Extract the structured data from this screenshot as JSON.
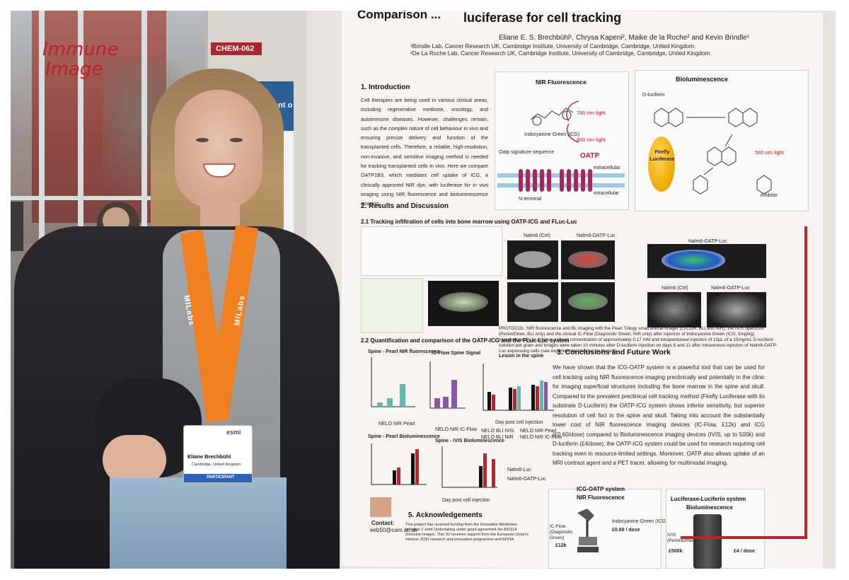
{
  "brand": {
    "logo_line1": "Immune",
    "logo_line2": "Image",
    "accent_color": "#c0212b"
  },
  "signs": {
    "board_number": "CHEM-062",
    "neighbour_fragment": "ssment o"
  },
  "badge": {
    "name": "Eliane Brechbühl",
    "affiliation": "Cambridge, United Kingdom",
    "role": "PARTICIPANT",
    "org": "esmi"
  },
  "lanyard": {
    "text": "MILabs"
  },
  "poster": {
    "title_line1": "Comparison ...",
    "title_line2": "luciferase for cell tracking",
    "authors": "Eliane E. S. Brechbühl¹, Chrysa Kapeni², Maike de la Roche² and Kevin Brindle¹",
    "affiliation1": "¹Brindle Lab, Cancer Research UK, Cambridge Institute, University of Cambridge, Cambridge, United Kingdom.",
    "affiliation2": "²De La Roche Lab, Cancer Research UK, Cambridge Institute, University of Cambridge, Cambridge, United Kingdom.",
    "intro_heading": "1. Introduction",
    "intro_text": "Cell therapies are being used in various clinical areas, including regenerative medicine, oncology, and autoimmune diseases. However, challenges remain, such as the complex nature of cell behaviour in vivo and ensuring precise delivery and function of the transplanted cells. Therefore, a reliable, high-resolution, non-invasive, and sensitive imaging method is needed for tracking transplanted cells in vivo. Here we compare OATP1B3, which mediates cell uptake of ICG, a clinically approved NIR dye, with luciferase for in vivo imaging using NIR fluorescence and bioluminescence imaging.",
    "nir_heading": "NIR Fluorescence",
    "bio_heading": "Bioluminescence",
    "nir_780": "780 nm light",
    "nir_800": "800 nm light",
    "icg_label": "Indocyanine Green (ICG)",
    "oatp_label": "OATP",
    "signature_label": "Oatp signature sequence",
    "extracellular": "extracellular",
    "intracellular": "intracellular",
    "n_terminal": "N-terminal",
    "d_luciferin": "D-luciferin",
    "firefly": "Firefly Luciferase",
    "light_560": "560 nm light",
    "inhibitor": "inhibitor",
    "results_heading": "2. Results and Discussion",
    "results_sub1": "2.1 Tracking infiltration of cells into bone marrow using OATP-ICG and FLuc-Luc",
    "results_sub2": "2.2 Quantification and comparison of the OATP-ICG and the FLuc-Luc system",
    "nalm6_ctrl": "Nalm6 (Ctrl)",
    "nalm6_oatp": "Nalm6-OATP-Luc",
    "protocol": "PROTOCOL: NIR fluorescence and BL imaging with the Pearl Trilogy small animal imager (Li-COR, BLI and NIR), the IVIS Spectrum (PerkinElmer, BLI only) and the clinical IC-Flow (Diagnostic Green, NIR only) after injection of Indocyanine Green (ICG, 5mg/kg) intraperitoneally to achieve a blood concentration of approximately 0.17 mM and intraperitoneal injection of 10µL of a 15mg/mL D-luciferin solution per gram and images were taken 10 minutes after D-luciferin injection on days 8 and 11 after intravenous injection of Nalm6-OATP-Luc expressing cells (see experimental timeline on the left).",
    "chart1_title": "Spine - Pearl NIR fluorescence",
    "chart2_title": "IC-Flow Spine Signal",
    "chart3_title": "Lesion in the spine",
    "chart4_title": "Spine - Pearl Bioluminescence",
    "chart5_title": "Spine - IVIS Bioluminescence",
    "legend_nelo_pearl": "NELO NIR Pearl",
    "legend_nelo_icflow": "NELO NIR IC-Flow",
    "legend_bli_ivis": "NELO BLI IVIS",
    "legend_bli_nir": "NELO BLI NIR",
    "legend_nir_pearl": "NELO NIR Pearl",
    "legend_nir_icflow": "NELO NIR IC-Flow",
    "legend_nalm6_luc": "Nalm6-Luc",
    "legend_nalm6_oatp": "Nalm6-OATP-Luc",
    "x_label": "Day post cell injection",
    "conclusions_heading": "3. Conclusions and Future Work",
    "conclusions_text": "We have shown that the ICG-OATP system is a powerful tool that can be used for cell tracking using NIR fluorescence imaging preclinically and potentially in the clinic for imaging superficial structures including the bone marrow in the spine and skull. Compared to the prevalent preclinical cell tracking method (Firefly Luciferase with its substrate D-Luciferin) the OATP-ICG system shows inferior sensitivity, but superior resolution of cell foci in the spine and skull. Taking into account the substantially lower cost of NIR fluorescence imaging devices (IC-Flow, £12k) and ICG (£0.60/dose) compared to Bioluminescence imaging devices (IVIS, up to 500k) and D-luciferin (£4/dose), the OATP-ICG system could be used for research requiring cell tracking even in resource-limited settings. Moreover, OATP also allows uptake of an MRI contrast agent and a PET tracer, allowing for multimodal imaging.",
    "icg_box_title1": "ICG-OATP system",
    "icg_box_title2": "NIR Fluorescence",
    "icflow": "IC-Flow (Diagnostic Green)",
    "icflow_cost": "£12k",
    "icg_dose": "Indocyanine Green (ICG)",
    "icg_cost": "£0.60 / dose",
    "luc_box_title1": "Luciferase-Luciferin system",
    "luc_box_title2": "Bioluminescence",
    "ivis": "IVIS (PerkinElmer)",
    "ivis_cost": "£500k",
    "dluc_cost": "£4 / dose",
    "ack_heading": "5. Acknowledgements",
    "ack_text": "This project has received funding from the Innovative Medicines Initiative 2 Joint Undertaking under grant agreement No 831514 (Immune-Image). This JU receives support from the European Union's Horizon 2020 research and innovation programme and EFPIA.",
    "contact_label": "Contact:",
    "contact_email": "eeb50@cam.ac.uk"
  }
}
